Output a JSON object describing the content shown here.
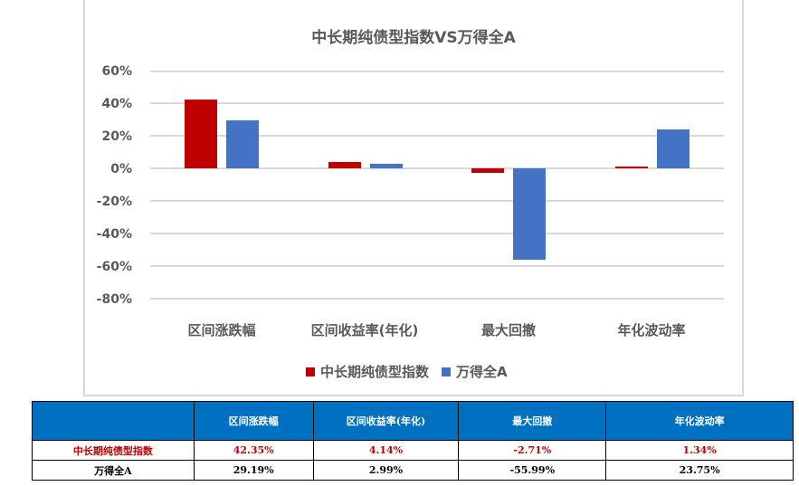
{
  "chart_data": {
    "type": "bar",
    "title": "中长期纯债型指数VS万得全A",
    "categories": [
      "区间涨跌幅",
      "区间收益率(年化)",
      "最大回撤",
      "年化波动率"
    ],
    "series": [
      {
        "name": "中长期纯债型指数",
        "color": "#c00000",
        "values": [
          42.35,
          4.14,
          -2.71,
          1.34
        ]
      },
      {
        "name": "万得全A",
        "color": "#4472c4",
        "values": [
          29.19,
          2.99,
          -55.99,
          23.75
        ]
      }
    ],
    "xlabel": "",
    "ylabel": "",
    "ylim": [
      -80,
      60
    ],
    "yticks": [
      "60%",
      "40%",
      "20%",
      "0%",
      "-20%",
      "-40%",
      "-60%",
      "-80%"
    ],
    "grid": true,
    "legend_position": "bottom"
  },
  "chart": {
    "title": "中长期纯债型指数VS万得全A",
    "y_ticks": [
      "60%",
      "40%",
      "20%",
      "0%",
      "-20%",
      "-40%",
      "-60%",
      "-80%"
    ],
    "x_labels": [
      "区间涨跌幅",
      "区间收益率(年化)",
      "最大回撤",
      "年化波动率"
    ],
    "legend": [
      {
        "label": "中长期纯债型指数",
        "color": "#c00000"
      },
      {
        "label": "万得全A",
        "color": "#4472c4"
      }
    ]
  },
  "table": {
    "headers": [
      "",
      "区间涨跌幅",
      "区间收益率(年化)",
      "最大回撤",
      "年化波动率"
    ],
    "rows": [
      {
        "name": "中长期纯债型指数",
        "cells": [
          "42.35%",
          "4.14%",
          "-2.71%",
          "1.34%"
        ],
        "color": "#c00000"
      },
      {
        "name": "万得全A",
        "cells": [
          "29.19%",
          "2.99%",
          "-55.99%",
          "23.75%"
        ],
        "color": "#000000"
      }
    ]
  }
}
